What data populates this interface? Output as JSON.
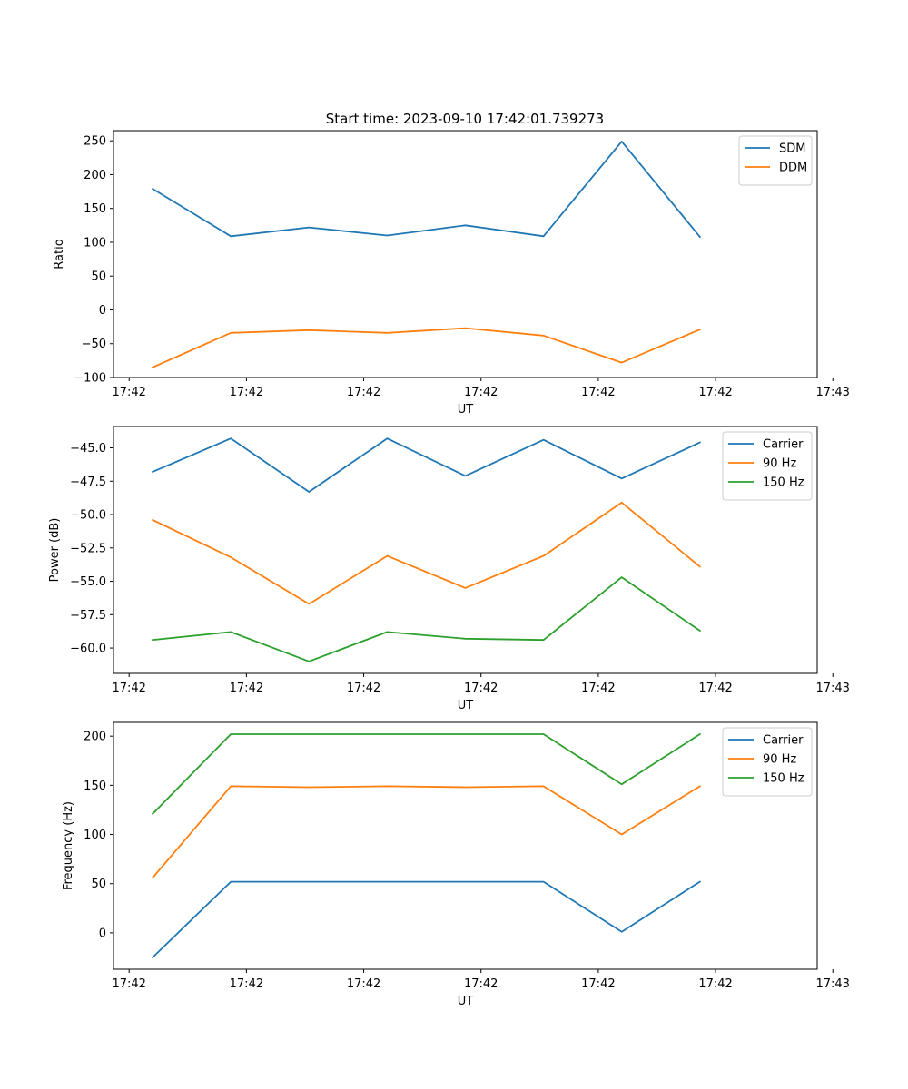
{
  "title": "Start time: 2023-09-10 17:42:01.739273",
  "colors": {
    "blue": "#1f77b4",
    "orange": "#ff7f0e",
    "green": "#2ca02c"
  },
  "chart_data": [
    {
      "type": "line",
      "title": "Start time: 2023-09-10 17:42:01.739273",
      "xlabel": "UT",
      "ylabel": "Ratio",
      "legend": "top-right",
      "xlim": [
        -0.5,
        8.5
      ],
      "ylim": [
        -100,
        265
      ],
      "xticks": [
        -0.3,
        1.2,
        2.7,
        4.2,
        5.7,
        7.2,
        8.7
      ],
      "xtick_labels": [
        "17:42",
        "17:42",
        "17:42",
        "17:42",
        "17:42",
        "17:42",
        "17:43"
      ],
      "yticks": [
        -100,
        -50,
        0,
        50,
        100,
        150,
        200,
        250
      ],
      "ytick_labels": [
        "−100",
        "−50",
        "0",
        "50",
        "100",
        "150",
        "200",
        "250"
      ],
      "x": [
        0,
        1,
        2,
        3,
        4,
        5,
        6,
        7
      ],
      "series": [
        {
          "name": "SDM",
          "color": "#1f77b4",
          "values": [
            179,
            109,
            122,
            110,
            125,
            109,
            249,
            108
          ]
        },
        {
          "name": "DDM",
          "color": "#ff7f0e",
          "values": [
            -85,
            -34,
            -30,
            -34,
            -27,
            -38,
            -78,
            -29
          ]
        }
      ]
    },
    {
      "type": "line",
      "xlabel": "UT",
      "ylabel": "Power (dB)",
      "legend": "top-right",
      "xlim": [
        -0.5,
        8.5
      ],
      "ylim": [
        -61.9,
        -43.4
      ],
      "xticks": [
        -0.3,
        1.2,
        2.7,
        4.2,
        5.7,
        7.2,
        8.7
      ],
      "xtick_labels": [
        "17:42",
        "17:42",
        "17:42",
        "17:42",
        "17:42",
        "17:42",
        "17:43"
      ],
      "yticks": [
        -60,
        -57.5,
        -55,
        -52.5,
        -50,
        -47.5,
        -45
      ],
      "ytick_labels": [
        "−60.0",
        "−57.5",
        "−55.0",
        "−52.5",
        "−50.0",
        "−47.5",
        "−45.0"
      ],
      "x": [
        0,
        1,
        2,
        3,
        4,
        5,
        6,
        7
      ],
      "series": [
        {
          "name": "Carrier",
          "color": "#1f77b4",
          "values": [
            -46.8,
            -44.3,
            -48.3,
            -44.3,
            -47.1,
            -44.4,
            -47.3,
            -44.6
          ]
        },
        {
          "name": "90 Hz",
          "color": "#ff7f0e",
          "values": [
            -50.4,
            -53.2,
            -56.7,
            -53.1,
            -55.5,
            -53.1,
            -49.1,
            -53.9
          ]
        },
        {
          "name": "150 Hz",
          "color": "#2ca02c",
          "values": [
            -59.4,
            -58.8,
            -61.0,
            -58.8,
            -59.3,
            -59.4,
            -54.7,
            -58.7
          ]
        }
      ]
    },
    {
      "type": "line",
      "xlabel": "UT",
      "ylabel": "Frequency (Hz)",
      "legend": "top-right",
      "xlim": [
        -0.5,
        8.5
      ],
      "ylim": [
        -37,
        214
      ],
      "xticks": [
        -0.3,
        1.2,
        2.7,
        4.2,
        5.7,
        7.2,
        8.7
      ],
      "xtick_labels": [
        "17:42",
        "17:42",
        "17:42",
        "17:42",
        "17:42",
        "17:42",
        "17:43"
      ],
      "yticks": [
        0,
        50,
        100,
        150,
        200
      ],
      "ytick_labels": [
        "0",
        "50",
        "100",
        "150",
        "200"
      ],
      "x": [
        0,
        1,
        2,
        3,
        4,
        5,
        6,
        7
      ],
      "series": [
        {
          "name": "Carrier",
          "color": "#1f77b4",
          "values": [
            -25,
            52,
            52,
            52,
            52,
            52,
            1,
            52
          ]
        },
        {
          "name": "90 Hz",
          "color": "#ff7f0e",
          "values": [
            56,
            149,
            148,
            149,
            148,
            149,
            100,
            149
          ]
        },
        {
          "name": "150 Hz",
          "color": "#2ca02c",
          "values": [
            121,
            202,
            202,
            202,
            202,
            202,
            151,
            202
          ]
        }
      ]
    }
  ]
}
